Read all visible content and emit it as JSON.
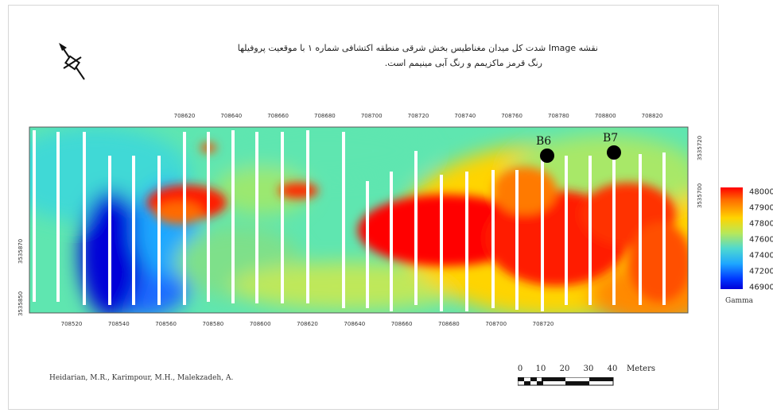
{
  "title": {
    "line1": "نقشه Image شدت کل میدان مغناطیس بخش شرقی منطقه اکتشافی شماره ۱ با موقعیت پروفیلها",
    "line2": "رنگ قرمز ماکزیمم و رنگ آبی مینیمم است."
  },
  "axes": {
    "top_ticks": [
      "708620",
      "708640",
      "708660",
      "708680",
      "708700",
      "708720",
      "708740",
      "708760",
      "708780",
      "708800",
      "708820"
    ],
    "bottom_ticks": [
      "708520",
      "708540",
      "708560",
      "708580",
      "708600",
      "708620",
      "708640",
      "708660",
      "708680",
      "708700",
      "708720"
    ],
    "right_ticks": [
      "3535720",
      "3535700"
    ],
    "left_ticks": [
      "3535870",
      "3535850"
    ]
  },
  "wells": [
    {
      "label": "B6"
    },
    {
      "label": "B7"
    }
  ],
  "legend": {
    "labels": [
      "48000",
      "47900",
      "47800",
      "47600",
      "47400",
      "47200",
      "46900"
    ],
    "unit": "Gamma",
    "colors": {
      "max": "#ff0000",
      "mid": "#ffd400",
      "min": "#0000d8"
    }
  },
  "scale_bar": {
    "ticks": [
      "0",
      "10",
      "20",
      "30",
      "40"
    ],
    "unit": "Meters"
  },
  "credit": "Heidarian, M.R., Karimpour, M.H., Malekzadeh, A."
}
